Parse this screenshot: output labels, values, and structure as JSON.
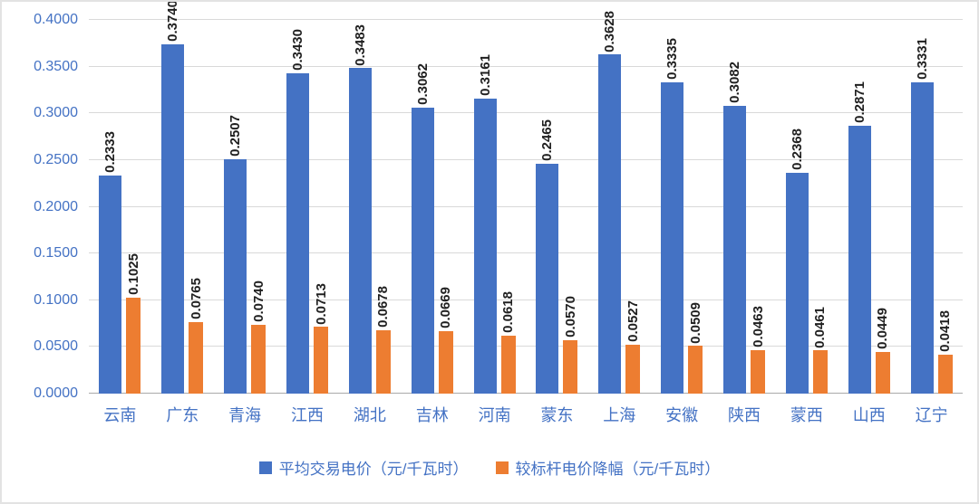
{
  "chart_data": {
    "type": "bar",
    "title": "",
    "xlabel": "",
    "ylabel": "",
    "categories": [
      "云南",
      "广东",
      "青海",
      "江西",
      "湖北",
      "吉林",
      "河南",
      "蒙东",
      "上海",
      "安徽",
      "陕西",
      "蒙西",
      "山西",
      "辽宁"
    ],
    "series": [
      {
        "name": "平均交易电价（元/千瓦时）",
        "color": "#4472C4",
        "values": [
          0.2333,
          0.374,
          0.2507,
          0.343,
          0.3483,
          0.3062,
          0.3161,
          0.2465,
          0.3628,
          0.3335,
          0.3082,
          0.2368,
          0.2871,
          0.3331
        ]
      },
      {
        "name": "较标杆电价降幅（元/千瓦时）",
        "color": "#ED7D31",
        "values": [
          0.1025,
          0.0765,
          0.074,
          0.0713,
          0.0678,
          0.0669,
          0.0618,
          0.057,
          0.0527,
          0.0509,
          0.0463,
          0.0461,
          0.0449,
          0.0418
        ]
      }
    ],
    "ylim": [
      0,
      0.4
    ],
    "ytick_step": 0.05,
    "ytick_labels": [
      "0.0000",
      "0.0500",
      "0.1000",
      "0.1500",
      "0.2000",
      "0.2500",
      "0.3000",
      "0.3500",
      "0.4000"
    ],
    "value_label_decimals": 4,
    "grid": true,
    "legend_position": "bottom",
    "colors": {
      "axis_text": "#4472C4",
      "value_label_text": "#1f1f1f",
      "gridline": "#d9d9d9"
    }
  }
}
